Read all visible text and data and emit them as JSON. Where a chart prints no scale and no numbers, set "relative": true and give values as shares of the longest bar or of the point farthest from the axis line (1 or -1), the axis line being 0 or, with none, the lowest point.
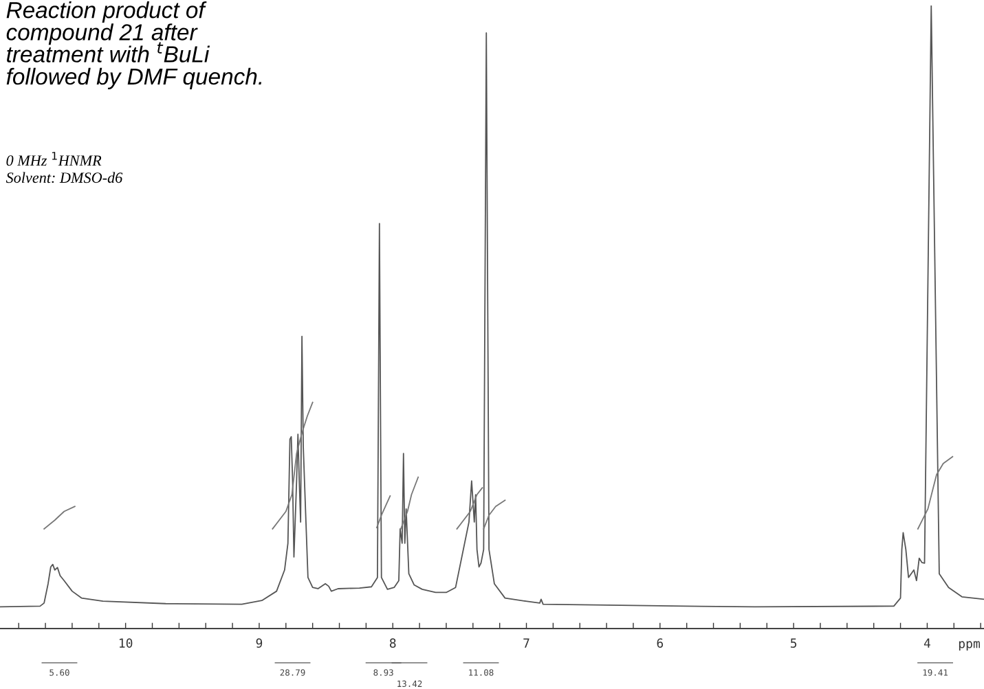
{
  "chart_data": {
    "type": "line",
    "relative": true,
    "title": "Reaction product of\ncompound 21 after\ntreatment with $^{t}$BuLi\nfollowed by DMF quench.",
    "subtitle": "0 MHz $^{1}$HNMR\nSolvent: DMSO-d6",
    "xlabel": "ppm",
    "xlim": [
      10.94,
      3.575
    ],
    "xticks": [
      {
        "value": 10.8,
        "label": null
      },
      {
        "value": 10.6,
        "label": null
      },
      {
        "value": 10.4,
        "label": null
      },
      {
        "value": 10.2,
        "label": null
      },
      10,
      {
        "value": 9.8,
        "label": null
      },
      {
        "value": 9.6,
        "label": null
      },
      {
        "value": 9.4,
        "label": null
      },
      {
        "value": 9.2,
        "label": null
      },
      9,
      {
        "value": 8.8,
        "label": null
      },
      {
        "value": 8.6,
        "label": null
      },
      {
        "value": 8.4,
        "label": null
      },
      {
        "value": 8.2,
        "label": null
      },
      8,
      {
        "value": 7.8,
        "label": null
      },
      {
        "value": 7.6,
        "label": null
      },
      {
        "value": 7.4,
        "label": null
      },
      {
        "value": 7.2,
        "label": null
      },
      7,
      {
        "value": 6.8,
        "label": null
      },
      {
        "value": 6.6,
        "label": null
      },
      {
        "value": 6.4,
        "label": null
      },
      {
        "value": 6.2,
        "label": null
      },
      6,
      {
        "value": 5.8,
        "label": null
      },
      {
        "value": 5.6,
        "label": null
      },
      {
        "value": 5.4,
        "label": null
      },
      {
        "value": 5.2,
        "label": null
      },
      5,
      {
        "value": 4.8,
        "label": null
      },
      {
        "value": 4.6,
        "label": null
      },
      {
        "value": 4.4,
        "label": null
      },
      {
        "value": 4.2,
        "label": null
      },
      4,
      {
        "value": 3.8,
        "label": null
      },
      {
        "value": 3.6,
        "label": null
      }
    ],
    "grid": false,
    "legend": false,
    "marker": "none",
    "line_style": "solid",
    "series": [
      {
        "color": "#555555",
        "x": [
          10.94,
          10.64,
          10.61,
          10.58,
          10.56,
          10.545,
          10.53,
          10.51,
          10.49,
          10.46,
          10.4,
          10.33,
          10.17,
          9.7,
          9.13,
          8.98,
          8.87,
          8.81,
          8.785,
          8.77,
          8.76,
          8.75,
          8.74,
          8.72,
          8.71,
          8.7,
          8.69,
          8.68,
          8.67,
          8.65,
          8.635,
          8.6,
          8.56,
          8.505,
          8.48,
          8.46,
          8.41,
          8.25,
          8.16,
          8.115,
          8.1,
          8.085,
          8.04,
          7.99,
          7.955,
          7.945,
          7.93,
          7.92,
          7.91,
          7.9,
          7.88,
          7.84,
          7.78,
          7.68,
          7.6,
          7.53,
          7.43,
          7.41,
          7.39,
          7.38,
          7.37,
          7.355,
          7.34,
          7.32,
          7.3,
          7.28,
          7.24,
          7.16,
          7.005,
          6.9,
          6.89,
          6.875,
          5.81,
          5.29,
          4.25,
          4.2,
          4.19,
          4.18,
          4.16,
          4.14,
          4.1,
          4.08,
          4.06,
          4.04,
          4.02,
          3.97,
          3.91,
          3.84,
          3.74,
          3.575
        ],
        "values": [
          0.035,
          0.036,
          0.041,
          0.072,
          0.099,
          0.103,
          0.094,
          0.098,
          0.085,
          0.077,
          0.06,
          0.049,
          0.044,
          0.04,
          0.039,
          0.045,
          0.06,
          0.094,
          0.137,
          0.304,
          0.308,
          0.237,
          0.115,
          0.237,
          0.312,
          0.237,
          0.171,
          0.469,
          0.292,
          0.171,
          0.082,
          0.066,
          0.064,
          0.072,
          0.068,
          0.06,
          0.064,
          0.065,
          0.067,
          0.082,
          0.65,
          0.082,
          0.063,
          0.066,
          0.077,
          0.16,
          0.137,
          0.281,
          0.137,
          0.192,
          0.088,
          0.07,
          0.063,
          0.058,
          0.058,
          0.066,
          0.171,
          0.237,
          0.171,
          0.215,
          0.127,
          0.099,
          0.105,
          0.127,
          0.956,
          0.127,
          0.072,
          0.049,
          0.044,
          0.041,
          0.047,
          0.039,
          0.036,
          0.035,
          0.036,
          0.049,
          0.127,
          0.154,
          0.127,
          0.082,
          0.094,
          0.077,
          0.113,
          0.106,
          0.105,
          1.0,
          0.088,
          0.066,
          0.051,
          0.047
        ]
      },
      {
        "color": "#777777",
        "x": [
          10.61,
          10.53,
          10.46,
          10.38
        ],
        "values": [
          0.16,
          0.174,
          0.188,
          0.196
        ]
      },
      {
        "color": "#777777",
        "x": [
          8.9,
          8.8,
          8.755,
          8.72,
          8.68,
          8.64,
          8.6
        ],
        "values": [
          0.16,
          0.188,
          0.215,
          0.281,
          0.314,
          0.341,
          0.363
        ]
      },
      {
        "color": "#777777",
        "x": [
          8.12,
          8.085,
          8.02
        ],
        "values": [
          0.162,
          0.182,
          0.213
        ]
      },
      {
        "color": "#777777",
        "x": [
          7.94,
          7.89,
          7.86,
          7.81
        ],
        "values": [
          0.16,
          0.188,
          0.215,
          0.243
        ]
      },
      {
        "color": "#777777",
        "x": [
          7.52,
          7.42,
          7.37,
          7.33
        ],
        "values": [
          0.16,
          0.188,
          0.215,
          0.226
        ]
      },
      {
        "color": "#777777",
        "x": [
          7.32,
          7.28,
          7.23,
          7.16
        ],
        "values": [
          0.16,
          0.182,
          0.196,
          0.206
        ]
      },
      {
        "color": "#777777",
        "x": [
          4.07,
          3.995,
          3.955,
          3.93,
          3.88,
          3.81
        ],
        "values": [
          0.16,
          0.192,
          0.226,
          0.247,
          0.265,
          0.276
        ]
      }
    ],
    "annotations": [
      "5.60",
      "28.79",
      "8.93",
      "13.42",
      "11.08",
      "19.41"
    ]
  }
}
